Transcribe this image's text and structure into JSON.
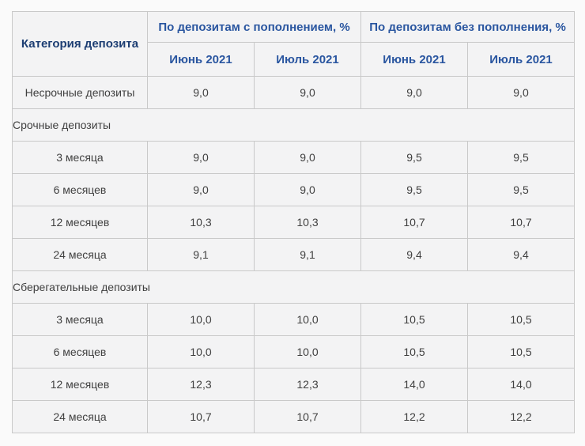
{
  "colors": {
    "header_blue": "#2a56a0",
    "category_header_blue": "#1d3e73",
    "body_text": "#404040",
    "border": "#c9c9c9",
    "cell_background": "#f3f3f4",
    "page_background": "#fafafa"
  },
  "chart_data": {
    "type": "table",
    "title": "",
    "category_header": "Категория депозита",
    "group_headers": [
      {
        "label": "По депозитам с пополнением, %"
      },
      {
        "label": "По депозитам без пополнения, %"
      }
    ],
    "month_headers": [
      "Июнь 2021",
      "Июль 2021",
      "Июнь 2021",
      "Июль 2021"
    ],
    "rows": [
      {
        "type": "data",
        "label": "Несрочные депозиты",
        "values": [
          "9,0",
          "9,0",
          "9,0",
          "9,0"
        ]
      },
      {
        "type": "section",
        "label": "Срочные депозиты"
      },
      {
        "type": "data",
        "label": "3 месяца",
        "values": [
          "9,0",
          "9,0",
          "9,5",
          "9,5"
        ]
      },
      {
        "type": "data",
        "label": "6 месяцев",
        "values": [
          "9,0",
          "9,0",
          "9,5",
          "9,5"
        ]
      },
      {
        "type": "data",
        "label": "12 месяцев",
        "values": [
          "10,3",
          "10,3",
          "10,7",
          "10,7"
        ]
      },
      {
        "type": "data",
        "label": "24 месяца",
        "values": [
          "9,1",
          "9,1",
          "9,4",
          "9,4"
        ]
      },
      {
        "type": "section",
        "label": "Сберегательные депозиты"
      },
      {
        "type": "data",
        "label": "3 месяца",
        "values": [
          "10,0",
          "10,0",
          "10,5",
          "10,5"
        ]
      },
      {
        "type": "data",
        "label": "6 месяцев",
        "values": [
          "10,0",
          "10,0",
          "10,5",
          "10,5"
        ]
      },
      {
        "type": "data",
        "label": "12 месяцев",
        "values": [
          "12,3",
          "12,3",
          "14,0",
          "14,0"
        ]
      },
      {
        "type": "data",
        "label": "24 месяца",
        "values": [
          "10,7",
          "10,7",
          "12,2",
          "12,2"
        ]
      }
    ]
  }
}
